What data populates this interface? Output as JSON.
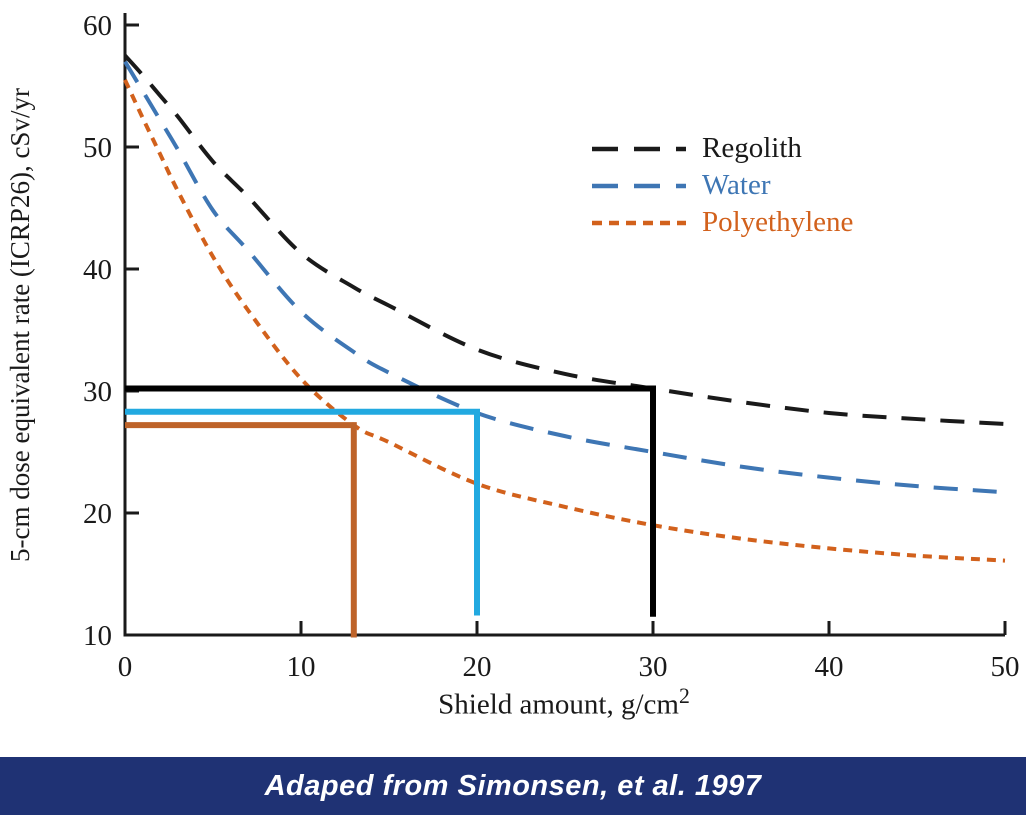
{
  "banner": {
    "text": "Adaped from Simonsen, et al. 1997",
    "bg": "#1f3274",
    "fg": "#ffffff"
  },
  "chart_data": {
    "type": "line",
    "title": "",
    "xlabel": "Shield amount, g/cm",
    "xlabel_sup": "2",
    "ylabel": "5-cm dose equivalent rate (ICRP26), cSv/yr",
    "xlim": [
      0,
      50
    ],
    "ylim": [
      10,
      60
    ],
    "x_ticks": [
      0,
      10,
      20,
      30,
      40,
      50
    ],
    "y_ticks": [
      10,
      20,
      30,
      40,
      50,
      60
    ],
    "grid": false,
    "legend_position": "upper right inside",
    "axis_color": "#1a1a1a",
    "x": [
      0,
      1,
      2,
      3,
      5,
      7,
      10,
      13,
      15,
      20,
      25,
      30,
      35,
      40,
      45,
      50
    ],
    "series": [
      {
        "name": "Regolith",
        "color": "#1a1a1a",
        "dash": "long",
        "values": [
          57.5,
          55.9,
          54.2,
          52.5,
          48.8,
          45.9,
          41.3,
          38.5,
          37.0,
          33.4,
          31.4,
          30.2,
          29.1,
          28.2,
          27.7,
          27.3
        ]
      },
      {
        "name": "Water",
        "color": "#3e76b4",
        "dash": "long",
        "values": [
          57.0,
          54.6,
          52.2,
          49.8,
          44.8,
          41.5,
          36.5,
          33.2,
          31.5,
          28.2,
          26.3,
          25.0,
          23.8,
          22.9,
          22.2,
          21.7
        ]
      },
      {
        "name": "Polyethylene",
        "color": "#d2611c",
        "dash": "short",
        "values": [
          55.5,
          52.4,
          49.4,
          46.4,
          41.0,
          36.6,
          31.0,
          27.2,
          25.8,
          22.4,
          20.5,
          19.0,
          17.9,
          17.1,
          16.5,
          16.1
        ]
      }
    ],
    "reference_lines": [
      {
        "series": "regolith",
        "color": "#000000",
        "y": 30.2,
        "x": 30,
        "drop_to": 11.5
      },
      {
        "series": "water",
        "color": "#22a9e0",
        "y": 28.3,
        "x": 20,
        "drop_to": 11.6
      },
      {
        "series": "polyethylene",
        "color": "#be6329",
        "y": 27.2,
        "x": 13,
        "drop_to": 9.8
      }
    ]
  }
}
